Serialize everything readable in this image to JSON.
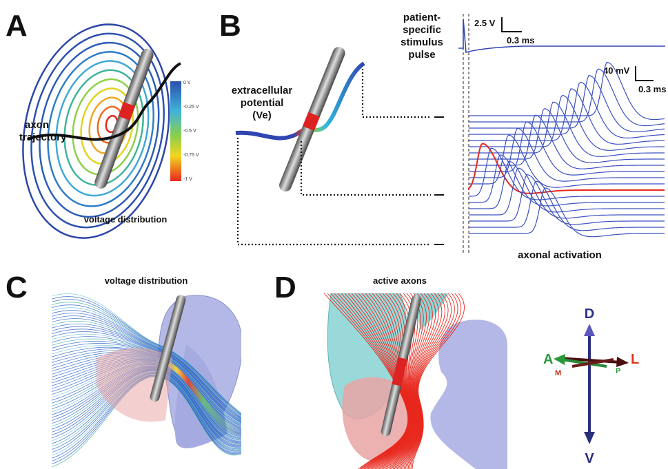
{
  "panels": {
    "a": {
      "label": "A",
      "axon_label": [
        "axon",
        "trajectory"
      ],
      "caption": "voltage distribution",
      "colorbar": [
        "0 V",
        "-0.25 V",
        "-0.5 V",
        "-0.75 V",
        "-1 V"
      ]
    },
    "b": {
      "label": "B",
      "ve_label": [
        "extracellular",
        "potential",
        "(Ve)"
      ],
      "stimulus_label": [
        "patient-",
        "specific",
        "stimulus",
        "pulse"
      ],
      "stim_scale": {
        "v": "2.5 V",
        "t": "0.3 ms"
      },
      "trace_scale": {
        "v": "40 mV",
        "t": "0.3 ms"
      },
      "caption": "axonal activation"
    },
    "c": {
      "label": "C",
      "caption": "voltage distribution"
    },
    "d": {
      "label": "D",
      "caption": "active axons"
    },
    "orientation": {
      "dorsal": "D",
      "ventral": "V",
      "anterior": "A",
      "lateral": "L",
      "medial": "M",
      "posterior": "P"
    }
  }
}
